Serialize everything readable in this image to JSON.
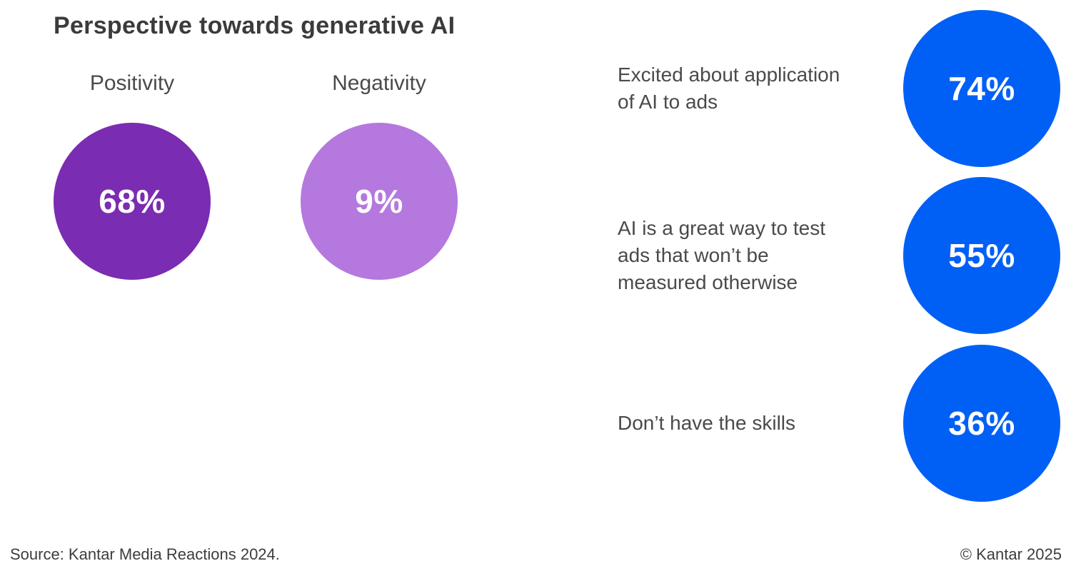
{
  "title": "Perspective towards generative AI",
  "sentiment": {
    "positivity": {
      "label": "Positivity",
      "value": "68%"
    },
    "negativity": {
      "label": "Negativity",
      "value": "9%"
    }
  },
  "statements": [
    {
      "lines": [
        "Excited about application",
        "of AI to ads"
      ],
      "value": "74%"
    },
    {
      "lines": [
        "AI is a great way to test",
        "ads that won’t be",
        "measured otherwise"
      ],
      "value": "55%"
    },
    {
      "lines": [
        "Don’t have the skills"
      ],
      "value": "36%"
    }
  ],
  "footer": {
    "source": "Source: Kantar Media Reactions 2024.",
    "copyright": "© Kantar 2025"
  },
  "colors": {
    "positivity_circle": "#7a2cb2",
    "negativity_circle": "#b478de",
    "statement_circle": "#0060f5",
    "text": "#4a4a4a",
    "circle_value_text": "#ffffff",
    "background": "#ffffff"
  },
  "chart_data": [
    {
      "type": "bubble",
      "title": "Perspective towards generative AI",
      "categories": [
        "Positivity",
        "Negativity"
      ],
      "values": [
        68,
        9
      ],
      "unit": "%",
      "colors": [
        "#7a2cb2",
        "#b478de"
      ],
      "notes": "equal-size circles with percentage labels inside; category labels above circles"
    },
    {
      "type": "bubble",
      "categories": [
        "Excited about application of AI to ads",
        "AI is a great way to test ads that won’t be measured otherwise",
        "Don’t have the skills"
      ],
      "values": [
        74,
        55,
        36
      ],
      "unit": "%",
      "colors": [
        "#0060f5",
        "#0060f5",
        "#0060f5"
      ],
      "notes": "equal-size circles stacked vertically on right; statement labels to the left of each circle"
    }
  ]
}
